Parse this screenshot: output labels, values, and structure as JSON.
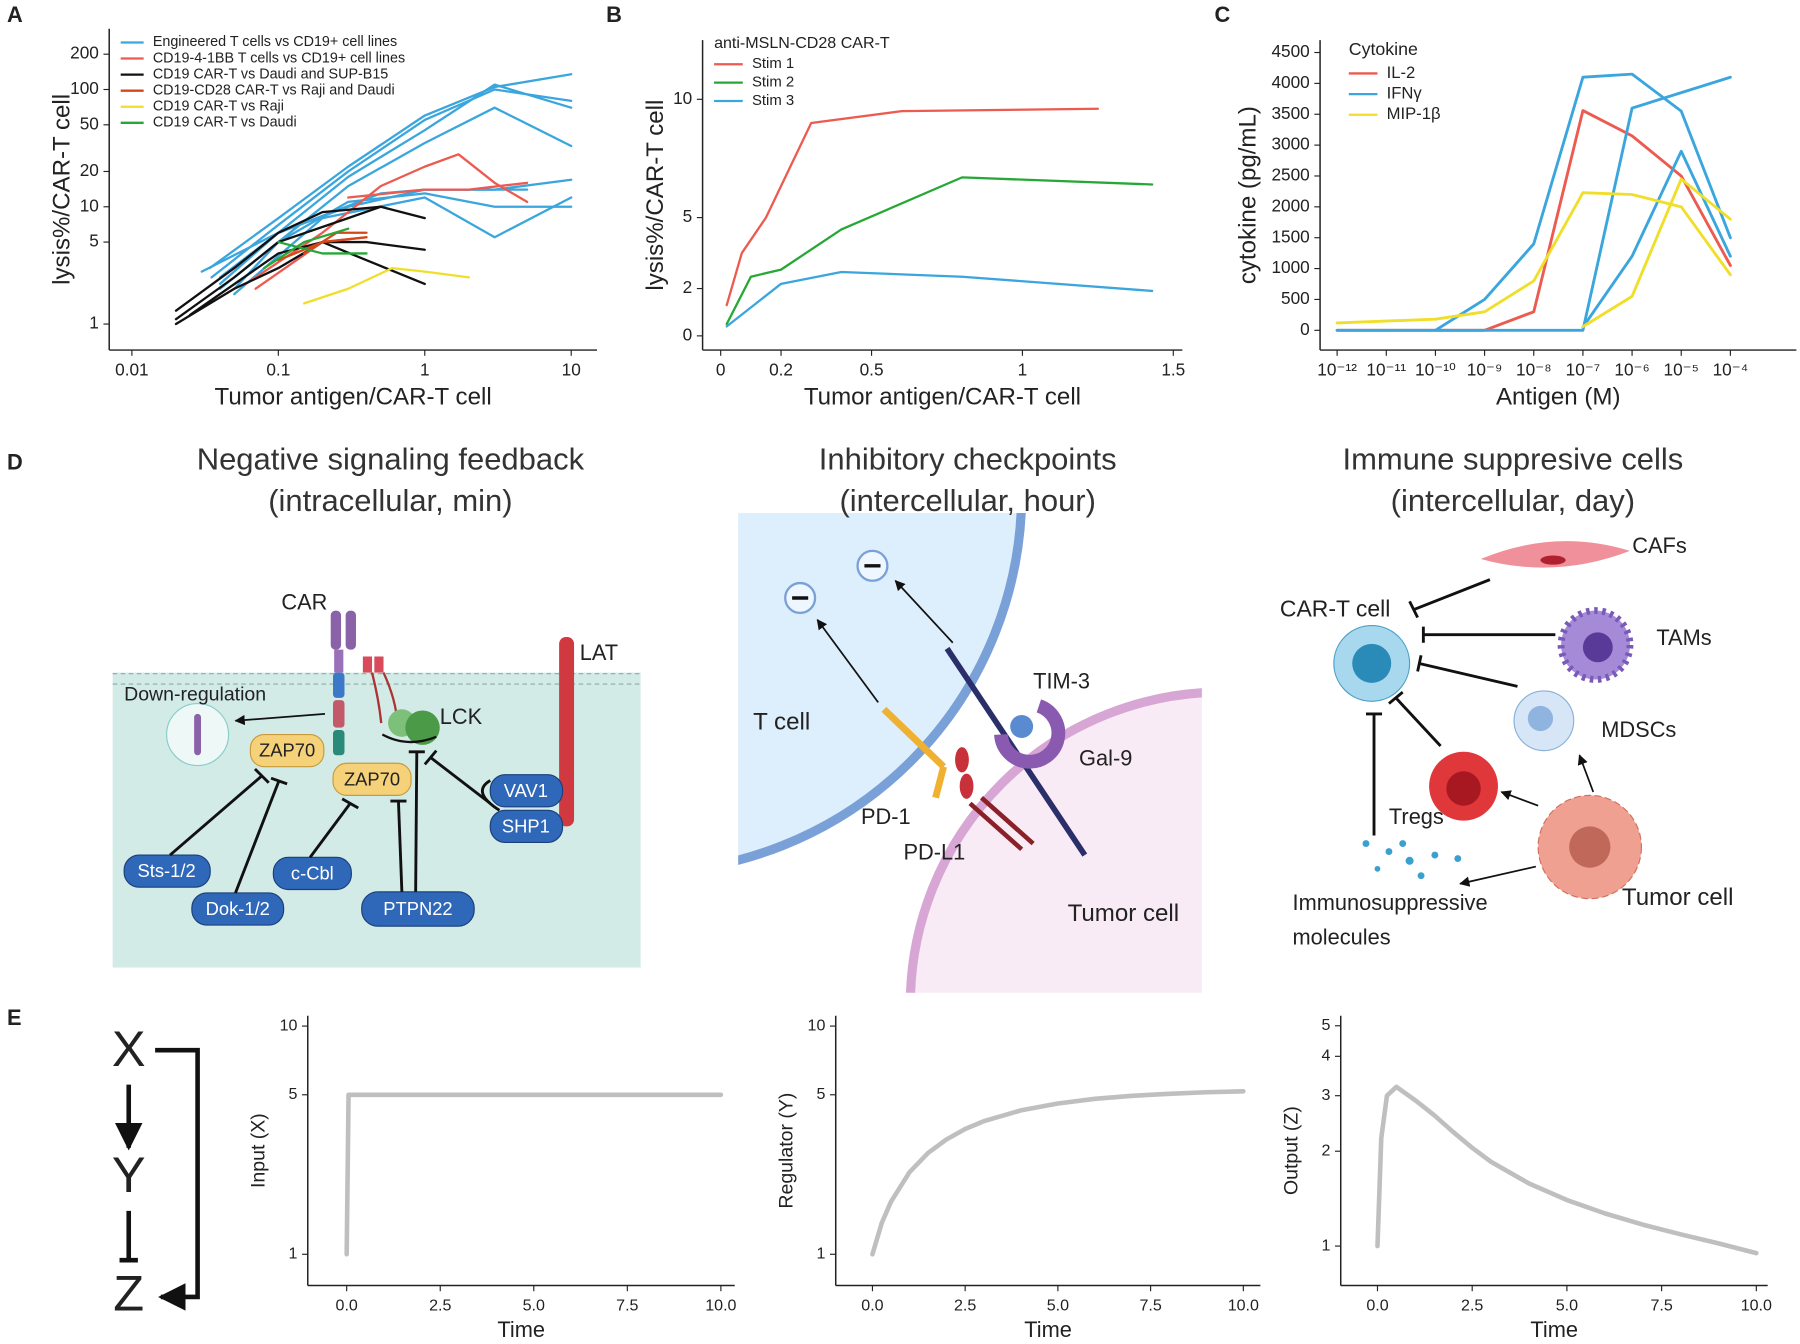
{
  "panel_labels": [
    "A",
    "B",
    "C",
    "D",
    "E"
  ],
  "chart_data": [
    {
      "type": "line",
      "xlog": true,
      "ylog": true,
      "xlim": [
        0.007,
        15
      ],
      "ylim": [
        0.6,
        330
      ],
      "xticks": [
        0.01,
        0.1,
        1,
        10
      ],
      "yticks": [
        1,
        5,
        10,
        20,
        50,
        100,
        200
      ],
      "xlabel": "Tumor antigen/CAR-T cell",
      "ylabel": "lysis%/CAR-T cell",
      "series": [
        {
          "name": "Engineered T cells vs CD19+ cell lines",
          "color": "#3aa6dd",
          "lines": [
            {
              "x": [
                0.034,
                0.1,
                0.3,
                1,
                3,
                10
              ],
              "values": [
                3,
                8,
                22,
                60,
                105,
                135
              ]
            },
            {
              "x": [
                0.035,
                0.1,
                0.3,
                1,
                3,
                10
              ],
              "values": [
                2.5,
                7,
                20,
                55,
                100,
                80
              ]
            },
            {
              "x": [
                0.04,
                0.1,
                0.3,
                1,
                3,
                10
              ],
              "values": [
                2.2,
                6,
                18,
                45,
                110,
                70
              ]
            },
            {
              "x": [
                0.04,
                0.1,
                0.3,
                1,
                3,
                10
              ],
              "values": [
                2,
                5,
                15,
                35,
                70,
                33
              ]
            },
            {
              "x": [
                0.04,
                0.1,
                0.3,
                1,
                3,
                10
              ],
              "values": [
                2.5,
                6,
                10,
                14,
                14,
                17
              ]
            },
            {
              "x": [
                0.05,
                0.1,
                0.3,
                1,
                3,
                10
              ],
              "values": [
                2,
                5,
                11,
                13,
                10,
                10
              ]
            },
            {
              "x": [
                0.05,
                0.2,
                1,
                3,
                10
              ],
              "values": [
                1.8,
                8,
                12,
                5.5,
                12
              ]
            },
            {
              "x": [
                0.03,
                0.1,
                0.5,
                1,
                5
              ],
              "values": [
                2.8,
                6,
                13,
                14,
                14
              ]
            }
          ]
        },
        {
          "name": "CD19-4-1BB T cells vs CD19+ cell lines",
          "color": "#ec5a50",
          "lines": [
            {
              "x": [
                0.06,
                0.2,
                0.5,
                1,
                1.7,
                3,
                5
              ],
              "values": [
                2.2,
                6,
                15,
                22,
                28,
                16,
                11
              ]
            },
            {
              "x": [
                0.3,
                1,
                2,
                5
              ],
              "values": [
                12,
                14,
                14,
                16
              ]
            },
            {
              "x": [
                0.07,
                0.2,
                0.4
              ],
              "values": [
                2,
                5,
                5.5
              ]
            }
          ]
        },
        {
          "name": "CD19 CAR-T vs Daudi and SUP-B15",
          "color": "#111111",
          "lines": [
            {
              "x": [
                0.02,
                0.05,
                0.1,
                0.2,
                0.5,
                1
              ],
              "values": [
                1.3,
                3,
                6,
                9,
                10,
                8
              ]
            },
            {
              "x": [
                0.02,
                0.05,
                0.1,
                0.3,
                0.5
              ],
              "values": [
                1.1,
                2.5,
                5,
                8,
                10
              ]
            },
            {
              "x": [
                0.02,
                0.05,
                0.1,
                0.2,
                0.4,
                1
              ],
              "values": [
                1,
                2,
                3,
                5,
                3.5,
                2.2
              ]
            },
            {
              "x": [
                0.025,
                0.1,
                0.2,
                0.4,
                1
              ],
              "values": [
                1.2,
                4,
                5,
                5,
                4.3
              ]
            }
          ]
        },
        {
          "name": "CD19-CD28 CAR-T vs Raji and Daudi",
          "color": "#d4471b",
          "lines": [
            {
              "x": [
                0.1,
                0.2,
                0.4
              ],
              "values": [
                3.5,
                5,
                5.5
              ]
            },
            {
              "x": [
                0.15,
                0.25,
                0.4
              ],
              "values": [
                4,
                6,
                6
              ]
            }
          ]
        },
        {
          "name": "CD19 CAR-T vs Raji",
          "color": "#f0df2a",
          "lines": [
            {
              "x": [
                0.15,
                0.3,
                0.6,
                1,
                2
              ],
              "values": [
                1.5,
                2,
                3,
                2.8,
                2.5
              ]
            }
          ]
        },
        {
          "name": "CD19 CAR-T vs Daudi",
          "color": "#27a836",
          "lines": [
            {
              "x": [
                0.08,
                0.15,
                0.3
              ],
              "values": [
                3,
                5,
                6.5
              ]
            },
            {
              "x": [
                0.1,
                0.2,
                0.4
              ],
              "values": [
                5,
                4,
                4
              ]
            }
          ]
        }
      ]
    },
    {
      "type": "line",
      "xlim": [
        -0.06,
        1.53
      ],
      "ylim": [
        -0.6,
        12.5
      ],
      "xticks": [
        0,
        0.2,
        0.5,
        1,
        1.5
      ],
      "yticks": [
        0,
        2,
        5,
        10
      ],
      "xlabel": "Tumor antigen/CAR-T cell",
      "ylabel": "lysis%/CAR-T cell",
      "legend_title": "anti-MSLN-CD28 CAR-T",
      "series": [
        {
          "name": "Stim 1",
          "color": "#ec5a50",
          "x": [
            0.02,
            0.07,
            0.15,
            0.3,
            0.6,
            1.25
          ],
          "values": [
            1.3,
            3.5,
            5,
            9,
            9.5,
            9.6
          ]
        },
        {
          "name": "Stim 2",
          "color": "#27a836",
          "x": [
            0.02,
            0.1,
            0.2,
            0.4,
            0.8,
            1.43
          ],
          "values": [
            0.5,
            2.5,
            2.8,
            4.5,
            6.7,
            6.4
          ]
        },
        {
          "name": "Stim 3",
          "color": "#3aa6dd",
          "x": [
            0.02,
            0.1,
            0.2,
            0.4,
            0.8,
            1.43
          ],
          "values": [
            0.4,
            1.2,
            2.2,
            2.7,
            2.5,
            1.9
          ]
        }
      ]
    },
    {
      "type": "line",
      "xlog": true,
      "xlim": [
        4.5e-13,
        0.0022
      ],
      "ylim": [
        -320,
        4700
      ],
      "xticks": [
        {
          "value": 1e-12,
          "label": "10⁻¹²"
        },
        {
          "value": 1e-11,
          "label": "10⁻¹¹"
        },
        {
          "value": 1e-10,
          "label": "10⁻¹⁰"
        },
        {
          "value": 1e-09,
          "label": "10⁻⁹"
        },
        {
          "value": 1e-08,
          "label": "10⁻⁸"
        },
        {
          "value": 1e-07,
          "label": "10⁻⁷"
        },
        {
          "value": 1e-06,
          "label": "10⁻⁶"
        },
        {
          "value": 1e-05,
          "label": "10⁻⁵"
        },
        {
          "value": 0.0001,
          "label": "10⁻⁴"
        }
      ],
      "yticks": [
        0,
        500,
        1000,
        1500,
        2000,
        2500,
        3000,
        3500,
        4000,
        4500
      ],
      "xlabel": "Antigen (M)",
      "ylabel": "cytokine (pg/mL)",
      "legend_title": "Cytokine",
      "series": [
        {
          "name": "IL-2",
          "color": "#ec5a50",
          "lines": [
            {
              "x": [
                1e-12,
                1e-09,
                1e-08,
                1e-07,
                1e-06,
                1e-05,
                0.0001
              ],
              "values": [
                0,
                0,
                300,
                3560,
                3150,
                2500,
                1050
              ]
            }
          ]
        },
        {
          "name": "IFNγ",
          "color": "#3aa6dd",
          "lines": [
            {
              "x": [
                1e-10,
                1e-09,
                1e-08,
                1e-07,
                1e-06,
                1e-05,
                0.0001
              ],
              "values": [
                0,
                500,
                1400,
                4100,
                4150,
                3550,
                1500
              ]
            },
            {
              "x": [
                1e-12,
                1e-07,
                1e-06,
                0.0001
              ],
              "values": [
                0,
                0,
                3600,
                4100
              ]
            },
            {
              "x": [
                1e-07,
                1e-06,
                1e-05,
                0.0001
              ],
              "values": [
                50,
                1200,
                2900,
                1200
              ]
            }
          ]
        },
        {
          "name": "MIP-1β",
          "color": "#f0df2a",
          "lines": [
            {
              "x": [
                1e-12,
                1e-10,
                1e-09,
                1e-08,
                1e-07,
                1e-06,
                1e-05,
                0.0001
              ],
              "values": [
                120,
                180,
                300,
                800,
                2230,
                2200,
                2000,
                900
              ]
            },
            {
              "x": [
                1e-07,
                1e-06,
                1e-05,
                0.0001
              ],
              "values": [
                60,
                550,
                2450,
                1800
              ]
            }
          ]
        }
      ]
    },
    {
      "type": "line",
      "ylog": true,
      "xlim": [
        -1.04,
        10.37
      ],
      "ylim": [
        0.73,
        11.1
      ],
      "xticks": [
        {
          "value": 0,
          "label": "0.0"
        },
        2.5,
        {
          "value": 5,
          "label": "5.0"
        },
        7.5,
        {
          "value": 10,
          "label": "10.0"
        }
      ],
      "yticks": [
        1,
        5,
        10
      ],
      "xlabel": "Time",
      "ylabel": "Input (X)",
      "series": [
        {
          "color": "#bfbfbf",
          "x": [
            0,
            0.05,
            10
          ],
          "values": [
            1,
            5,
            5
          ]
        }
      ]
    },
    {
      "type": "line",
      "ylog": true,
      "xlim": [
        -0.99,
        10.46
      ],
      "ylim": [
        0.73,
        11.1
      ],
      "xticks": [
        {
          "value": 0,
          "label": "0.0"
        },
        2.5,
        {
          "value": 5,
          "label": "5.0"
        },
        7.5,
        {
          "value": 10,
          "label": "10.0"
        }
      ],
      "yticks": [
        1,
        5,
        10
      ],
      "xlabel": "Time",
      "ylabel": "Regulator (Y)",
      "series": [
        {
          "color": "#bfbfbf",
          "x": [
            0,
            0.25,
            0.5,
            1,
            1.5,
            2,
            2.5,
            3,
            4,
            5,
            6,
            7,
            8,
            9,
            10
          ],
          "values": [
            1,
            1.37,
            1.7,
            2.29,
            2.78,
            3.19,
            3.54,
            3.83,
            4.27,
            4.58,
            4.8,
            4.95,
            5.05,
            5.13,
            5.18
          ]
        }
      ]
    },
    {
      "type": "line",
      "ylog": true,
      "xlim": [
        -0.97,
        10.3
      ],
      "ylim": [
        0.75,
        5.38
      ],
      "xticks": [
        {
          "value": 0,
          "label": "0.0"
        },
        2.5,
        {
          "value": 5,
          "label": "5.0"
        },
        7.5,
        {
          "value": 10,
          "label": "10.0"
        }
      ],
      "yticks": [
        1,
        2,
        3,
        4,
        5
      ],
      "xlabel": "Time",
      "ylabel": "Output (Z)",
      "series": [
        {
          "color": "#bfbfbf",
          "x": [
            0,
            0.1,
            0.25,
            0.5,
            1,
            1.5,
            2,
            2.5,
            3,
            4,
            5,
            6,
            7,
            8,
            9,
            10
          ],
          "values": [
            1,
            2.2,
            3,
            3.2,
            2.9,
            2.6,
            2.3,
            2.05,
            1.85,
            1.58,
            1.4,
            1.27,
            1.17,
            1.09,
            1.02,
            0.95
          ]
        }
      ]
    }
  ],
  "panel_d": {
    "left": {
      "title": "Negative signaling feedback",
      "subtitle": "(intracellular, min)",
      "car": "CAR",
      "lat": "LAT",
      "downregulation": "Down-regulation",
      "lck": "LCK",
      "zap70_a": "ZAP70",
      "zap70_b": "ZAP70",
      "vav1": "VAV1",
      "shp1": "SHP1",
      "sts": "Sts-1/2",
      "dok": "Dok-1/2",
      "ccbl": "c-Cbl",
      "ptpn22": "PTPN22"
    },
    "middle": {
      "title": "Inhibitory checkpoints",
      "subtitle": "(intercellular, hour)",
      "tcell": "T cell",
      "tim3": "TIM-3",
      "gal9": "Gal-9",
      "pd1": "PD-1",
      "pdl1": "PD-L1",
      "tumor": "Tumor cell"
    },
    "right": {
      "title": "Immune suppresive cells",
      "subtitle": "(intercellular, day)",
      "cart": "CAR-T cell",
      "cafs": "CAFs",
      "tams": "TAMs",
      "mdscs": "MDSCs",
      "tregs": "Tregs",
      "tumor": "Tumor cell",
      "molecules_1": "Immunosuppressive",
      "molecules_2": "molecules"
    }
  },
  "motif": {
    "x": "X",
    "y": "Y",
    "z": "Z"
  }
}
